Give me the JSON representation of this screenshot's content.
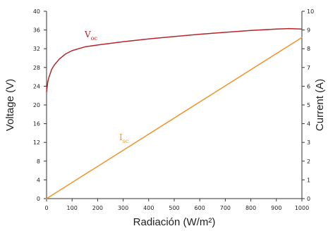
{
  "chart_data": {
    "type": "line",
    "xlabel": "Radiación (W/m²)",
    "ylabel_left": "Voltage (V)",
    "ylabel_right": "Current (A)",
    "xlim": [
      0,
      1000
    ],
    "ylim_left": [
      0,
      40
    ],
    "ylim_right": [
      0,
      10
    ],
    "x_ticks": [
      "0",
      "100",
      "200",
      "300",
      "400",
      "500",
      "600",
      "700",
      "800",
      "900",
      "1000"
    ],
    "y_left_ticks": [
      "0",
      "4",
      "8",
      "12",
      "16",
      "20",
      "24",
      "28",
      "32",
      "36",
      "40"
    ],
    "y_right_ticks": [
      "0",
      "1",
      "2",
      "3",
      "4",
      "5",
      "6",
      "7",
      "8",
      "9",
      "10"
    ],
    "grid": false,
    "series": [
      {
        "name": "Voc",
        "label_main": "V",
        "label_sub": "oc",
        "axis": "left",
        "color": "#b5252b",
        "x": [
          0,
          5,
          10,
          20,
          30,
          50,
          75,
          100,
          150,
          200,
          300,
          400,
          500,
          600,
          700,
          800,
          900,
          950,
          1000
        ],
        "y": [
          22.8,
          25.0,
          26.0,
          27.6,
          28.5,
          29.8,
          30.9,
          31.6,
          32.4,
          32.8,
          33.5,
          34.1,
          34.6,
          35.1,
          35.5,
          35.9,
          36.2,
          36.3,
          36.2
        ]
      },
      {
        "name": "Isc",
        "label_main": "I",
        "label_sub": "sc",
        "axis": "right",
        "color": "#f0952e",
        "x": [
          0,
          1000
        ],
        "y": [
          0,
          8.6
        ]
      }
    ]
  }
}
